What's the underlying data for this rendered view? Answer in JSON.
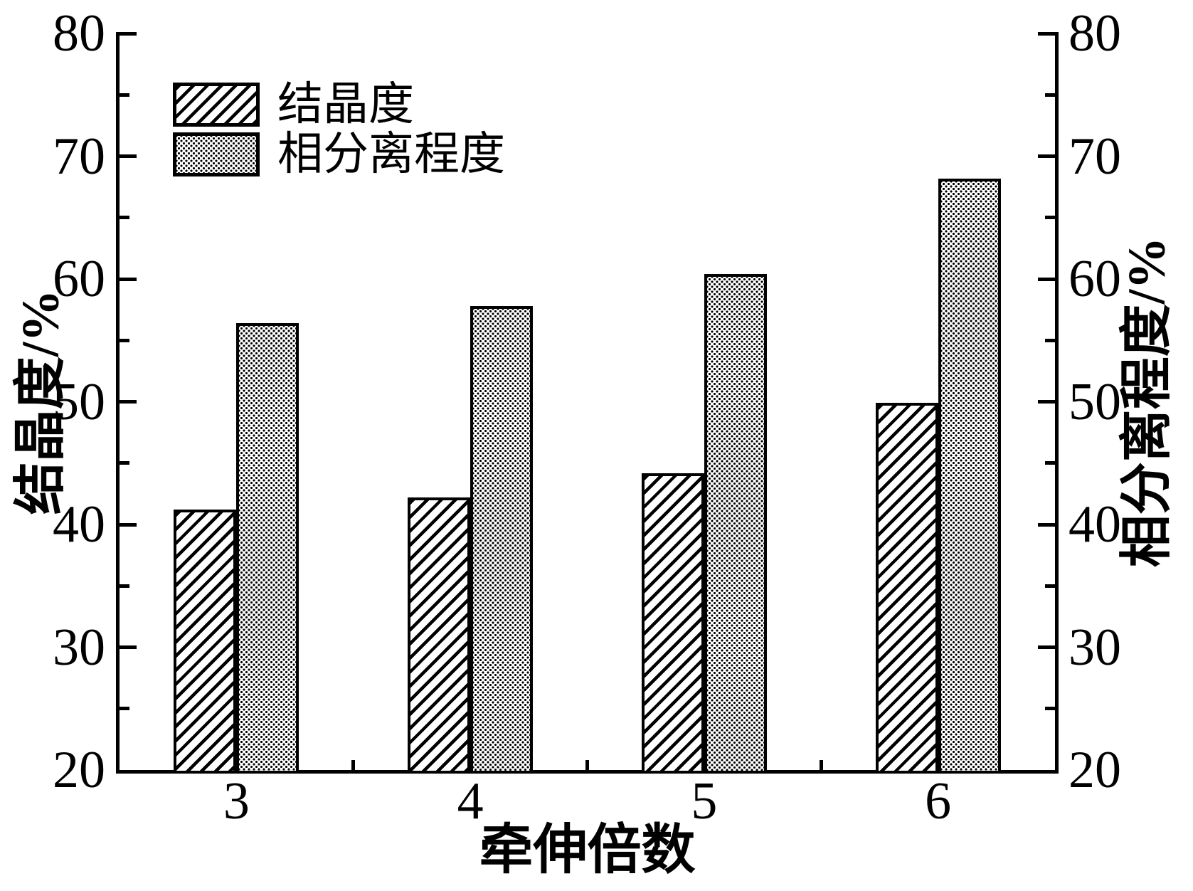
{
  "chart_data": {
    "type": "bar",
    "title": "",
    "categories": [
      "3",
      "4",
      "5",
      "6"
    ],
    "series": [
      {
        "name": "结晶度",
        "pattern": "diagonal-hatch",
        "axis": "left",
        "values": [
          41.2,
          42.2,
          44.2,
          49.9
        ]
      },
      {
        "name": "相分离程度",
        "pattern": "dot-grid",
        "axis": "right",
        "values": [
          56.4,
          57.8,
          60.4,
          68.2
        ]
      }
    ],
    "xlabel": "牵伸倍数",
    "ylabel_left": "结晶度/%",
    "ylabel_right": "相分离程度/%",
    "ylim": [
      20,
      80
    ],
    "y_major_step": 10,
    "y_minor_step": 5,
    "y_major_tick_labels": [
      "20",
      "30",
      "40",
      "50",
      "60",
      "70",
      "80"
    ],
    "tick_direction": "in",
    "grid": false,
    "legend_position": "top-left",
    "colors": {
      "foreground": "#000000",
      "background": "#ffffff"
    }
  }
}
